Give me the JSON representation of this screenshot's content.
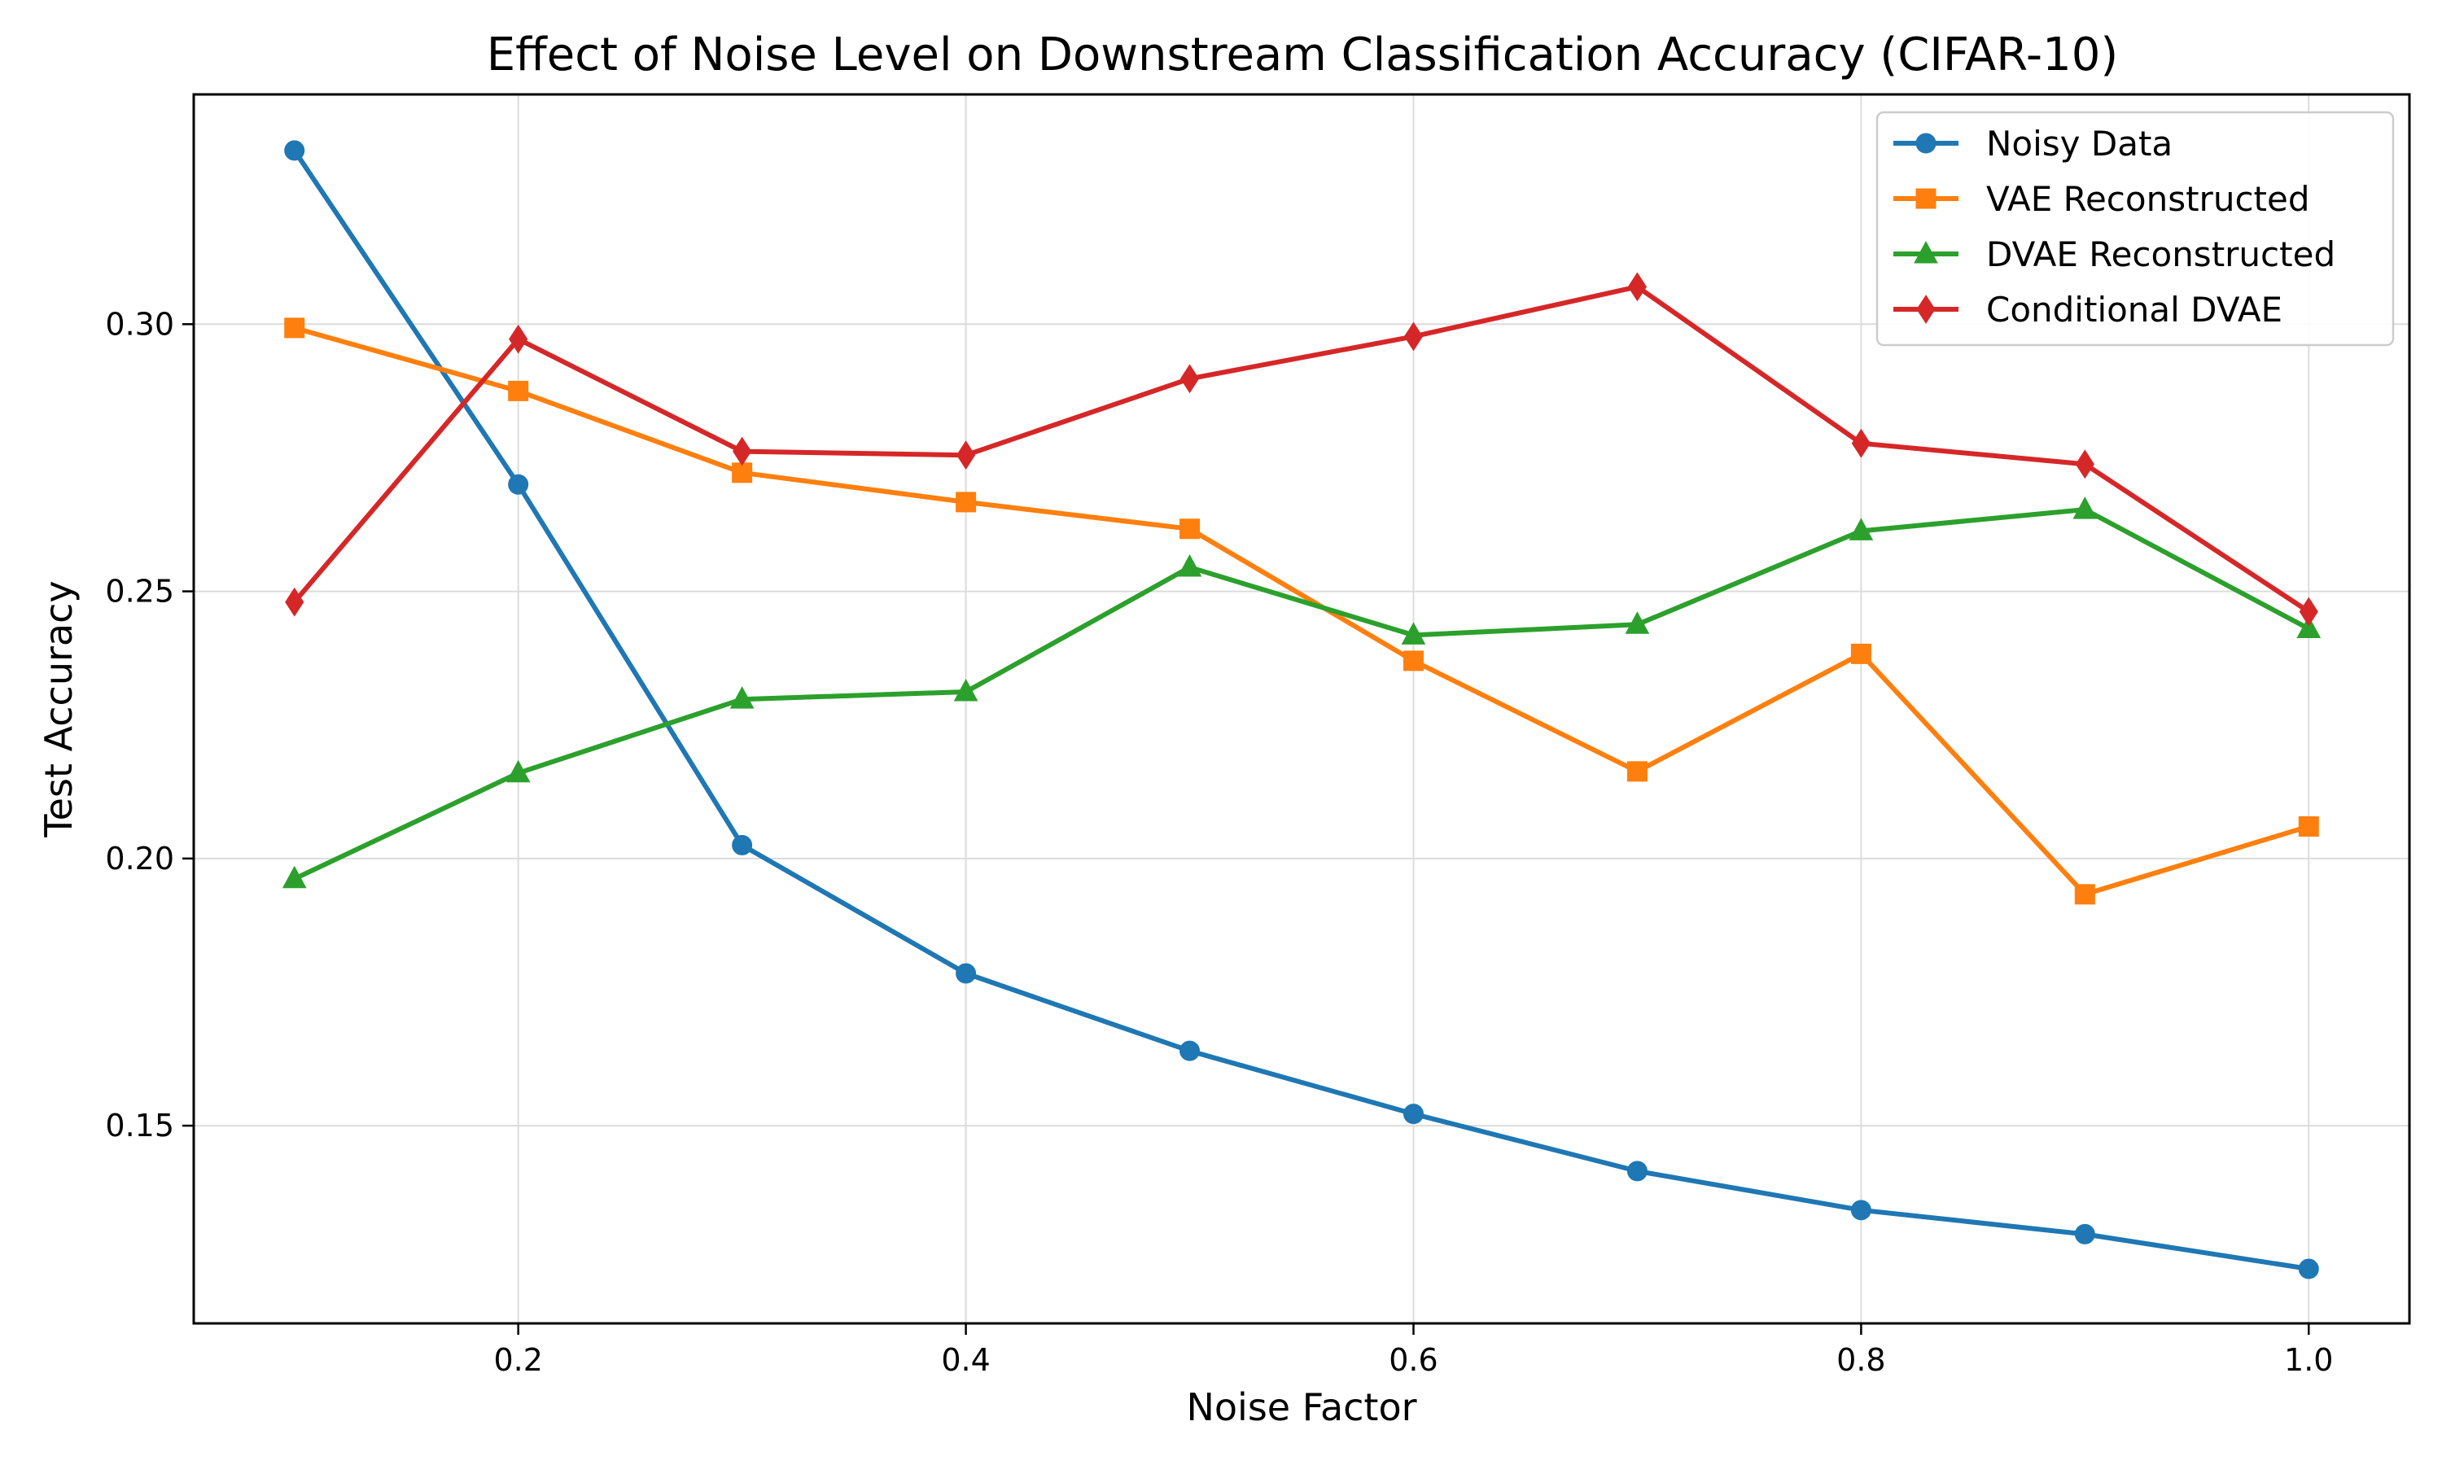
{
  "chart_data": {
    "type": "line",
    "title": "Effect of Noise Level on Downstream Classification Accuracy (CIFAR-10)",
    "xlabel": "Noise Factor",
    "ylabel": "Test Accuracy",
    "x": [
      0.1,
      0.2,
      0.3,
      0.4,
      0.5,
      0.6,
      0.7,
      0.8,
      0.9,
      1.0
    ],
    "xlim": [
      0.055,
      1.045
    ],
    "ylim": [
      0.113,
      0.343
    ],
    "x_ticks": [
      0.2,
      0.4,
      0.6,
      0.8,
      1.0
    ],
    "x_tick_labels": [
      "0.2",
      "0.4",
      "0.6",
      "0.8",
      "1.0"
    ],
    "y_ticks": [
      0.15,
      0.2,
      0.25,
      0.3
    ],
    "y_tick_labels": [
      "0.15",
      "0.20",
      "0.25",
      "0.30"
    ],
    "grid": true,
    "legend_position": "top-right",
    "series": [
      {
        "name": "Noisy Data",
        "color": "#1f77b4",
        "marker": "circle",
        "values": [
          0.3325,
          0.27,
          0.2025,
          0.1785,
          0.164,
          0.1522,
          0.1415,
          0.1342,
          0.1297,
          0.1232
        ]
      },
      {
        "name": "VAE Reconstructed",
        "color": "#ff7f0e",
        "marker": "square",
        "values": [
          0.2993,
          0.2875,
          0.2722,
          0.2667,
          0.2617,
          0.237,
          0.2163,
          0.2383,
          0.1933,
          0.206
        ]
      },
      {
        "name": "DVAE Reconstructed",
        "color": "#2ca02c",
        "marker": "triangle",
        "values": [
          0.1962,
          0.216,
          0.2298,
          0.2312,
          0.2545,
          0.2418,
          0.2438,
          0.2613,
          0.2653,
          0.243
        ]
      },
      {
        "name": "Conditional DVAE",
        "color": "#d62728",
        "marker": "diamond",
        "values": [
          0.248,
          0.2972,
          0.2762,
          0.2755,
          0.2898,
          0.2977,
          0.307,
          0.2777,
          0.2738,
          0.2462
        ]
      }
    ]
  }
}
